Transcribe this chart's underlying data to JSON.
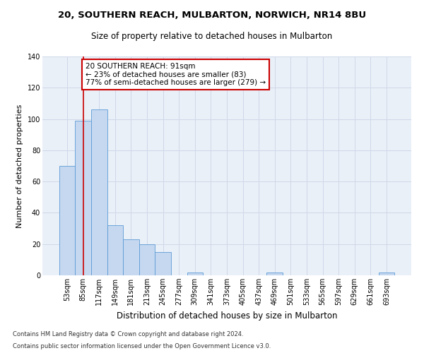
{
  "title1": "20, SOUTHERN REACH, MULBARTON, NORWICH, NR14 8BU",
  "title2": "Size of property relative to detached houses in Mulbarton",
  "xlabel": "Distribution of detached houses by size in Mulbarton",
  "ylabel": "Number of detached properties",
  "footnote1": "Contains HM Land Registry data © Crown copyright and database right 2024.",
  "footnote2": "Contains public sector information licensed under the Open Government Licence v3.0.",
  "categories": [
    "53sqm",
    "85sqm",
    "117sqm",
    "149sqm",
    "181sqm",
    "213sqm",
    "245sqm",
    "277sqm",
    "309sqm",
    "341sqm",
    "373sqm",
    "405sqm",
    "437sqm",
    "469sqm",
    "501sqm",
    "533sqm",
    "565sqm",
    "597sqm",
    "629sqm",
    "661sqm",
    "693sqm"
  ],
  "values": [
    70,
    99,
    106,
    32,
    23,
    20,
    15,
    0,
    2,
    0,
    0,
    0,
    0,
    2,
    0,
    0,
    0,
    0,
    0,
    0,
    2
  ],
  "bar_color": "#c5d8f0",
  "bar_edge_color": "#5b9bd5",
  "grid_color": "#d0d8e8",
  "background_color": "#eaf0f8",
  "annotation_box_color": "#ffffff",
  "annotation_border_color": "#cc0000",
  "property_line_color": "#cc0000",
  "property_bin_index": 1,
  "annotation_text": "20 SOUTHERN REACH: 91sqm\n← 23% of detached houses are smaller (83)\n77% of semi-detached houses are larger (279) →",
  "ylim": [
    0,
    140
  ],
  "yticks": [
    0,
    20,
    40,
    60,
    80,
    100,
    120,
    140
  ],
  "title1_fontsize": 9.5,
  "title2_fontsize": 8.5,
  "ylabel_fontsize": 8,
  "xlabel_fontsize": 8.5,
  "tick_fontsize": 7,
  "annot_fontsize": 7.5,
  "footnote_fontsize": 6
}
